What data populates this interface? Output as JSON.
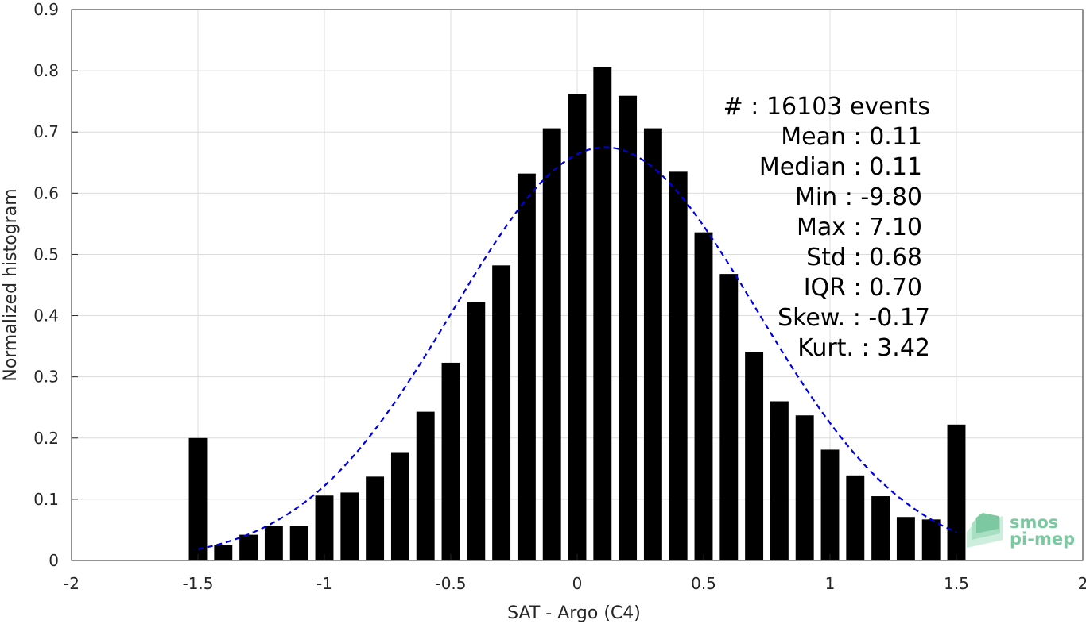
{
  "chart_data": {
    "type": "bar",
    "xlabel": "SAT - Argo (C4)",
    "ylabel": "Normalized histogram",
    "xlim": [
      -2,
      2
    ],
    "ylim": [
      0,
      0.9
    ],
    "xticks": [
      -2,
      -1.5,
      -1,
      -0.5,
      0,
      0.5,
      1,
      1.5,
      2
    ],
    "xtick_labels": [
      "-2",
      "-1.5",
      "-1",
      "-0.5",
      "0",
      "0.5",
      "1",
      "1.5",
      "2"
    ],
    "yticks": [
      0,
      0.1,
      0.2,
      0.3,
      0.4,
      0.5,
      0.6,
      0.7,
      0.8,
      0.9
    ],
    "ytick_labels": [
      "0",
      "0.1",
      "0.2",
      "0.3",
      "0.4",
      "0.5",
      "0.6",
      "0.7",
      "0.8",
      "0.9"
    ],
    "grid": true,
    "bar_color": "#000000",
    "bins": [
      -1.5,
      -1.4,
      -1.3,
      -1.2,
      -1.1,
      -1.0,
      -0.9,
      -0.8,
      -0.7,
      -0.6,
      -0.5,
      -0.4,
      -0.3,
      -0.2,
      -0.1,
      0.0,
      0.1,
      0.2,
      0.3,
      0.4,
      0.5,
      0.6,
      0.7,
      0.8,
      0.9,
      1.0,
      1.1,
      1.2,
      1.3,
      1.4,
      1.5
    ],
    "values": [
      0.2,
      0.025,
      0.042,
      0.056,
      0.056,
      0.106,
      0.111,
      0.137,
      0.177,
      0.243,
      0.323,
      0.422,
      0.482,
      0.632,
      0.706,
      0.762,
      0.806,
      0.759,
      0.706,
      0.635,
      0.536,
      0.468,
      0.341,
      0.26,
      0.237,
      0.181,
      0.139,
      0.105,
      0.071,
      0.067,
      0.222
    ],
    "fit_curve": {
      "style": "dashed",
      "color": "#0000dd",
      "mean": 0.11,
      "std": 0.6,
      "peak": 0.675,
      "x_range": [
        -1.5,
        1.5
      ]
    },
    "stats": [
      {
        "label": "#  : 16103 events"
      },
      {
        "label": "Mean : 0.11"
      },
      {
        "label": "Median : 0.11"
      },
      {
        "label": "Min : -9.80"
      },
      {
        "label": "Max : 7.10"
      },
      {
        "label": "Std : 0.68"
      },
      {
        "label": "IQR : 0.70"
      },
      {
        "label": "Skew. : -0.17"
      },
      {
        "label": "Kurt. : 3.42"
      }
    ]
  },
  "logo": {
    "line1": "smos",
    "line2": "pi-mep",
    "color": "#7cc8a0"
  }
}
